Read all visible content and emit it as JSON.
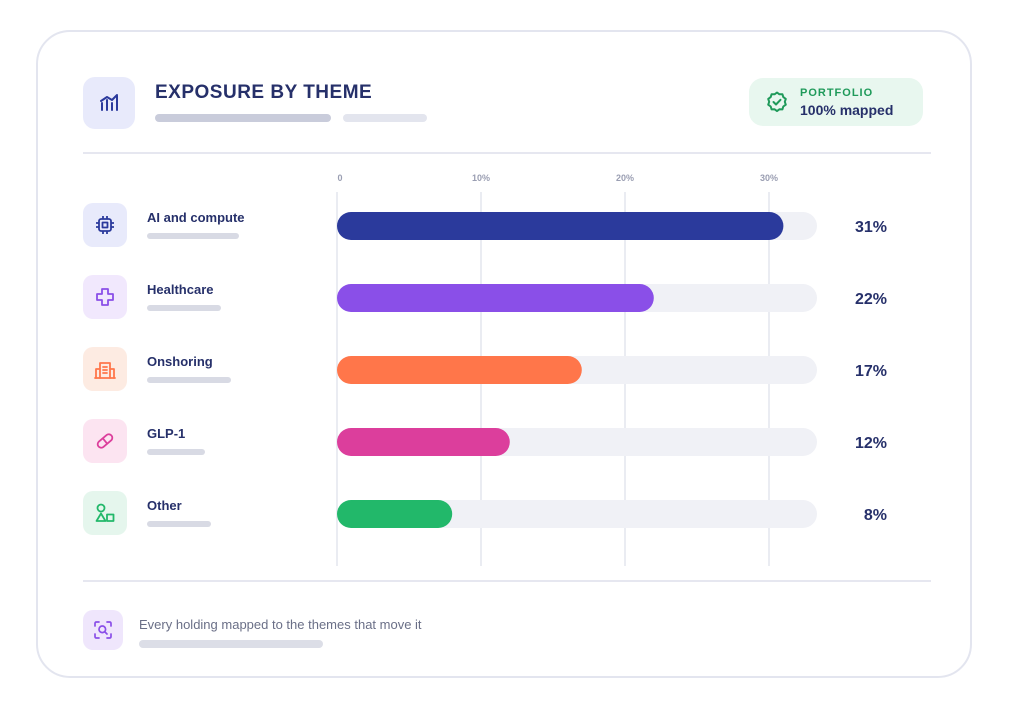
{
  "header": {
    "title": "EXPOSURE BY THEME",
    "icon": "bar-chart-icon"
  },
  "badge": {
    "label": "PORTFOLIO",
    "value": "100% mapped",
    "icon": "check-badge-icon",
    "color": "#1f9a5a"
  },
  "chart_data": {
    "type": "bar",
    "orientation": "horizontal",
    "categories": [
      "AI and compute",
      "Healthcare",
      "Onshoring",
      "GLP-1",
      "Other"
    ],
    "values": [
      31,
      22,
      17,
      12,
      8
    ],
    "value_labels": [
      "31%",
      "22%",
      "17%",
      "12%",
      "8%"
    ],
    "colors": [
      "#2b3a9c",
      "#8a4fe8",
      "#ff764a",
      "#dc3e9c",
      "#22b86a"
    ],
    "icons": [
      "chip-icon",
      "medical-cross-icon",
      "building-icon",
      "pill-icon",
      "shapes-icon"
    ],
    "x_ticks": [
      0,
      10,
      20,
      30
    ],
    "x_tick_labels": [
      "0",
      "10%",
      "20%",
      "30%"
    ],
    "xlim": [
      0,
      33.4
    ],
    "grid": true,
    "title": "EXPOSURE BY THEME",
    "xlabel": "",
    "ylabel": ""
  },
  "footer": {
    "text": "Every holding mapped to the themes that move it",
    "icon": "scan-search-icon"
  }
}
